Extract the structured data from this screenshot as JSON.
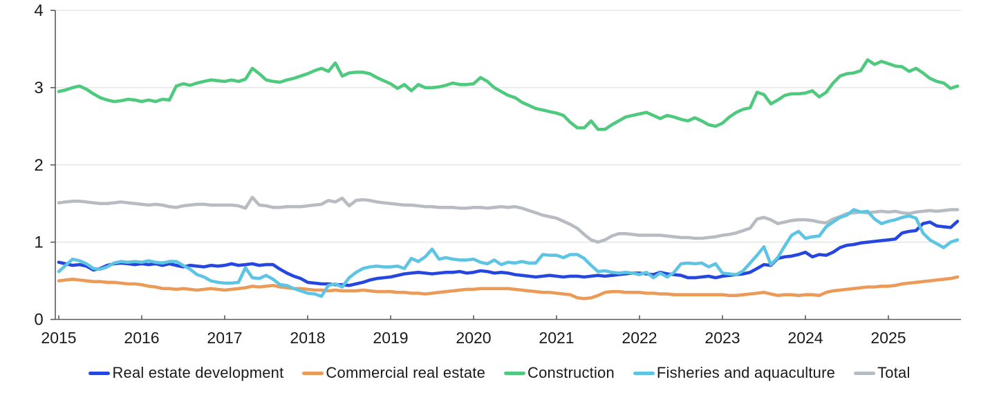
{
  "chart_data": {
    "type": "line",
    "title": "",
    "xlabel": "",
    "ylabel": "",
    "ylim": [
      0,
      4
    ],
    "grid": "horizontal",
    "legend_position": "bottom",
    "x_unit": "month",
    "x_start": "2015-01",
    "x_end": "2025-11",
    "y_ticks": [
      "0",
      "1",
      "2",
      "3",
      "4"
    ],
    "x_tick_labels": [
      "2015",
      "2016",
      "2017",
      "2018",
      "2019",
      "2020",
      "2021",
      "2022",
      "2023",
      "2024",
      "2025"
    ],
    "axis_color": "#58595b",
    "grid_color": "#d9d9d9",
    "text_color": "#1a1a1a",
    "series": [
      {
        "name": "Real estate development",
        "color": "#2647df",
        "values": [
          0.74,
          0.72,
          0.7,
          0.71,
          0.69,
          0.64,
          0.66,
          0.7,
          0.72,
          0.73,
          0.72,
          0.71,
          0.72,
          0.71,
          0.72,
          0.7,
          0.72,
          0.7,
          0.68,
          0.7,
          0.69,
          0.68,
          0.7,
          0.69,
          0.7,
          0.72,
          0.7,
          0.71,
          0.72,
          0.7,
          0.71,
          0.71,
          0.65,
          0.6,
          0.56,
          0.53,
          0.48,
          0.47,
          0.46,
          0.46,
          0.45,
          0.45,
          0.44,
          0.46,
          0.48,
          0.51,
          0.53,
          0.54,
          0.55,
          0.57,
          0.59,
          0.6,
          0.61,
          0.6,
          0.59,
          0.6,
          0.61,
          0.61,
          0.62,
          0.6,
          0.61,
          0.63,
          0.62,
          0.6,
          0.61,
          0.6,
          0.58,
          0.57,
          0.56,
          0.55,
          0.56,
          0.57,
          0.56,
          0.55,
          0.56,
          0.56,
          0.55,
          0.56,
          0.57,
          0.56,
          0.57,
          0.58,
          0.59,
          0.6,
          0.6,
          0.59,
          0.58,
          0.61,
          0.59,
          0.58,
          0.57,
          0.54,
          0.54,
          0.55,
          0.56,
          0.54,
          0.56,
          0.57,
          0.58,
          0.59,
          0.61,
          0.66,
          0.71,
          0.7,
          0.79,
          0.81,
          0.82,
          0.84,
          0.87,
          0.81,
          0.84,
          0.83,
          0.87,
          0.93,
          0.96,
          0.97,
          0.99,
          1.0,
          1.01,
          1.02,
          1.03,
          1.04,
          1.12,
          1.14,
          1.15,
          1.24,
          1.26,
          1.21,
          1.2,
          1.19,
          1.27
        ]
      },
      {
        "name": "Commercial real estate",
        "color": "#eb9a57",
        "values": [
          0.5,
          0.51,
          0.52,
          0.51,
          0.5,
          0.49,
          0.49,
          0.48,
          0.48,
          0.47,
          0.46,
          0.46,
          0.45,
          0.43,
          0.42,
          0.4,
          0.4,
          0.39,
          0.4,
          0.39,
          0.38,
          0.39,
          0.4,
          0.39,
          0.38,
          0.39,
          0.4,
          0.41,
          0.43,
          0.42,
          0.43,
          0.44,
          0.42,
          0.41,
          0.4,
          0.4,
          0.39,
          0.38,
          0.38,
          0.37,
          0.38,
          0.37,
          0.37,
          0.37,
          0.38,
          0.37,
          0.36,
          0.36,
          0.36,
          0.35,
          0.35,
          0.34,
          0.34,
          0.33,
          0.34,
          0.35,
          0.36,
          0.37,
          0.38,
          0.39,
          0.39,
          0.4,
          0.4,
          0.4,
          0.4,
          0.4,
          0.39,
          0.38,
          0.37,
          0.36,
          0.35,
          0.35,
          0.34,
          0.33,
          0.32,
          0.28,
          0.27,
          0.28,
          0.31,
          0.35,
          0.36,
          0.36,
          0.35,
          0.35,
          0.35,
          0.34,
          0.34,
          0.33,
          0.33,
          0.32,
          0.32,
          0.32,
          0.32,
          0.32,
          0.32,
          0.32,
          0.32,
          0.31,
          0.31,
          0.32,
          0.33,
          0.34,
          0.35,
          0.33,
          0.31,
          0.32,
          0.32,
          0.31,
          0.32,
          0.32,
          0.31,
          0.35,
          0.37,
          0.38,
          0.39,
          0.4,
          0.41,
          0.42,
          0.42,
          0.43,
          0.43,
          0.44,
          0.46,
          0.47,
          0.48,
          0.49,
          0.5,
          0.51,
          0.52,
          0.53,
          0.55
        ]
      },
      {
        "name": "Construction",
        "color": "#4fc97e",
        "values": [
          2.95,
          2.97,
          3.0,
          3.02,
          2.98,
          2.92,
          2.87,
          2.84,
          2.82,
          2.83,
          2.85,
          2.84,
          2.82,
          2.84,
          2.82,
          2.85,
          2.84,
          3.02,
          3.05,
          3.03,
          3.06,
          3.08,
          3.1,
          3.09,
          3.08,
          3.1,
          3.08,
          3.11,
          3.25,
          3.18,
          3.1,
          3.08,
          3.07,
          3.1,
          3.12,
          3.15,
          3.18,
          3.22,
          3.25,
          3.21,
          3.32,
          3.15,
          3.19,
          3.2,
          3.2,
          3.18,
          3.13,
          3.09,
          3.05,
          2.99,
          3.04,
          2.96,
          3.04,
          3.0,
          3.0,
          3.01,
          3.03,
          3.06,
          3.04,
          3.04,
          3.05,
          3.13,
          3.08,
          3.0,
          2.95,
          2.9,
          2.87,
          2.81,
          2.77,
          2.73,
          2.71,
          2.69,
          2.67,
          2.64,
          2.55,
          2.48,
          2.48,
          2.57,
          2.46,
          2.46,
          2.52,
          2.57,
          2.62,
          2.64,
          2.66,
          2.68,
          2.64,
          2.6,
          2.64,
          2.62,
          2.59,
          2.57,
          2.61,
          2.57,
          2.52,
          2.5,
          2.54,
          2.62,
          2.68,
          2.72,
          2.74,
          2.94,
          2.91,
          2.79,
          2.84,
          2.9,
          2.92,
          2.92,
          2.93,
          2.96,
          2.88,
          2.94,
          3.06,
          3.15,
          3.18,
          3.19,
          3.22,
          3.36,
          3.3,
          3.34,
          3.31,
          3.28,
          3.27,
          3.21,
          3.25,
          3.19,
          3.12,
          3.08,
          3.06,
          2.99,
          3.02
        ]
      },
      {
        "name": "Fisheries and aquaculture",
        "color": "#5ec4e4",
        "values": [
          0.62,
          0.7,
          0.78,
          0.76,
          0.72,
          0.66,
          0.65,
          0.68,
          0.73,
          0.75,
          0.74,
          0.75,
          0.74,
          0.76,
          0.74,
          0.73,
          0.75,
          0.75,
          0.7,
          0.65,
          0.58,
          0.55,
          0.5,
          0.48,
          0.47,
          0.47,
          0.48,
          0.67,
          0.54,
          0.53,
          0.57,
          0.52,
          0.45,
          0.44,
          0.4,
          0.37,
          0.34,
          0.33,
          0.3,
          0.44,
          0.46,
          0.42,
          0.54,
          0.61,
          0.66,
          0.68,
          0.69,
          0.68,
          0.68,
          0.69,
          0.66,
          0.79,
          0.75,
          0.81,
          0.91,
          0.78,
          0.8,
          0.78,
          0.77,
          0.77,
          0.78,
          0.74,
          0.72,
          0.77,
          0.71,
          0.74,
          0.73,
          0.75,
          0.73,
          0.73,
          0.84,
          0.83,
          0.83,
          0.8,
          0.84,
          0.84,
          0.79,
          0.7,
          0.62,
          0.63,
          0.61,
          0.6,
          0.61,
          0.6,
          0.58,
          0.61,
          0.54,
          0.6,
          0.55,
          0.61,
          0.72,
          0.73,
          0.72,
          0.73,
          0.68,
          0.72,
          0.6,
          0.59,
          0.58,
          0.63,
          0.73,
          0.83,
          0.94,
          0.71,
          0.8,
          0.95,
          1.09,
          1.14,
          1.05,
          1.07,
          1.08,
          1.2,
          1.26,
          1.32,
          1.35,
          1.42,
          1.39,
          1.4,
          1.3,
          1.24,
          1.27,
          1.29,
          1.32,
          1.34,
          1.31,
          1.12,
          1.03,
          0.98,
          0.93,
          1.0,
          1.03
        ]
      },
      {
        "name": "Total",
        "color": "#b7bbc2",
        "values": [
          1.51,
          1.52,
          1.53,
          1.53,
          1.52,
          1.51,
          1.5,
          1.5,
          1.51,
          1.52,
          1.51,
          1.5,
          1.49,
          1.48,
          1.49,
          1.48,
          1.46,
          1.45,
          1.47,
          1.48,
          1.49,
          1.49,
          1.48,
          1.48,
          1.48,
          1.48,
          1.47,
          1.44,
          1.58,
          1.48,
          1.47,
          1.45,
          1.45,
          1.46,
          1.46,
          1.46,
          1.47,
          1.48,
          1.49,
          1.54,
          1.52,
          1.57,
          1.47,
          1.54,
          1.55,
          1.54,
          1.52,
          1.51,
          1.5,
          1.49,
          1.48,
          1.48,
          1.47,
          1.46,
          1.46,
          1.45,
          1.45,
          1.45,
          1.44,
          1.44,
          1.45,
          1.45,
          1.44,
          1.45,
          1.46,
          1.45,
          1.46,
          1.44,
          1.41,
          1.38,
          1.35,
          1.33,
          1.31,
          1.27,
          1.23,
          1.18,
          1.1,
          1.03,
          1.0,
          1.03,
          1.08,
          1.11,
          1.11,
          1.1,
          1.09,
          1.09,
          1.09,
          1.09,
          1.08,
          1.07,
          1.06,
          1.06,
          1.05,
          1.05,
          1.06,
          1.07,
          1.09,
          1.1,
          1.12,
          1.15,
          1.18,
          1.3,
          1.32,
          1.29,
          1.24,
          1.26,
          1.28,
          1.29,
          1.29,
          1.28,
          1.26,
          1.25,
          1.3,
          1.33,
          1.37,
          1.38,
          1.39,
          1.38,
          1.39,
          1.4,
          1.39,
          1.4,
          1.38,
          1.37,
          1.39,
          1.4,
          1.41,
          1.4,
          1.41,
          1.42,
          1.42
        ]
      }
    ]
  }
}
